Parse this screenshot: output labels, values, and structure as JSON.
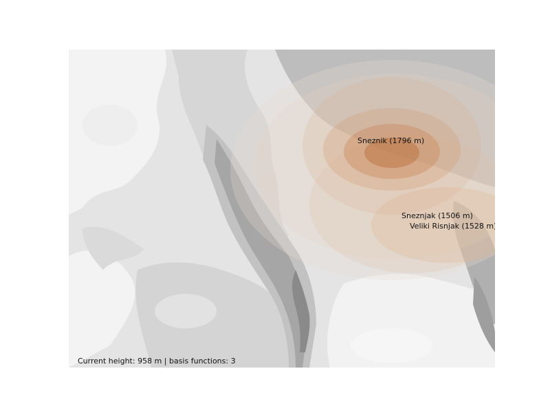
{
  "map": {
    "peaks": [
      {
        "id": "sneznik",
        "label": "Sneznik (1796 m)"
      },
      {
        "id": "sneznjak",
        "label": "Sneznjak (1506 m)"
      },
      {
        "id": "veliki-risnjak",
        "label": "Veliki Risnjak (1528 m)"
      }
    ],
    "overlay_color": "#c8753f",
    "terrain_colors": [
      "#f4f4f4",
      "#e6e6e6",
      "#d6d6d6",
      "#c4c4c4",
      "#a8a8a8",
      "#8c8c8c"
    ]
  },
  "status": {
    "text": "Current height: 958 m | basis functions: 3"
  }
}
